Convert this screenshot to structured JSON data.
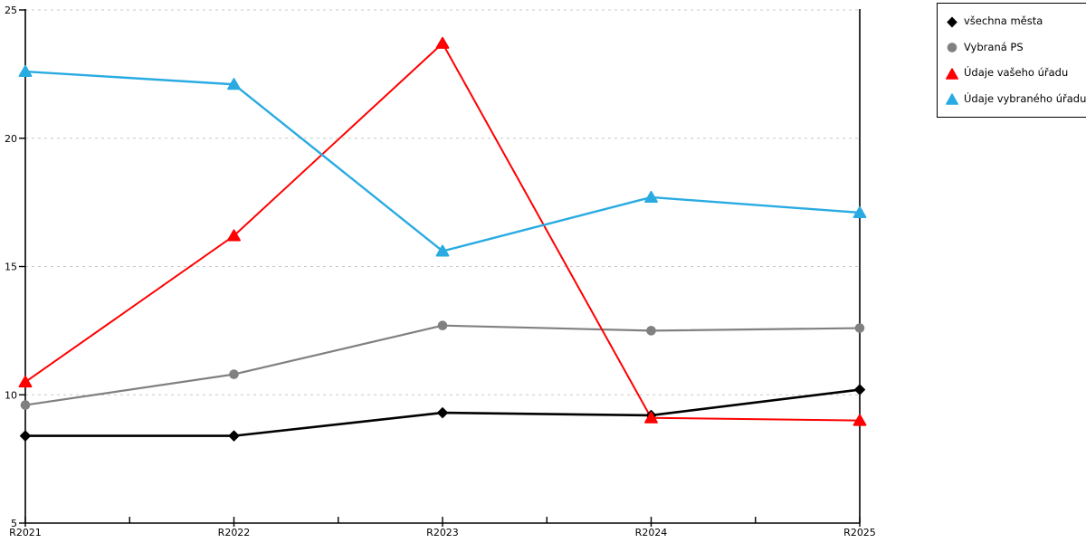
{
  "chart_data": {
    "type": "line",
    "title": "",
    "xlabel": "",
    "ylabel": "",
    "categories": [
      "R2021",
      "R2022",
      "R2023",
      "R2024",
      "R2025"
    ],
    "series": [
      {
        "name": "všechna města",
        "color": "#000000",
        "marker": "diamond",
        "line_width": 2.6,
        "values": [
          8.4,
          8.4,
          9.3,
          9.2,
          10.2
        ]
      },
      {
        "name": "Vybraná PS",
        "color": "#808080",
        "marker": "circle",
        "line_width": 2.2,
        "values": [
          9.6,
          10.8,
          12.7,
          12.5,
          12.6
        ]
      },
      {
        "name": "Údaje vašeho úřadu",
        "color": "#ff0000",
        "marker": "triangle",
        "line_width": 2.0,
        "values": [
          10.5,
          16.2,
          23.7,
          9.1,
          9.0
        ]
      },
      {
        "name": "Údaje vybraného úřadu",
        "color": "#29abe2",
        "marker": "triangle",
        "line_width": 2.4,
        "values": [
          22.6,
          22.1,
          15.6,
          17.7,
          17.1
        ]
      }
    ],
    "ylim": [
      5,
      25
    ],
    "yticks": [
      5,
      10,
      15,
      20,
      25
    ],
    "x_minor_ticks": "midpoints",
    "grid": "horizontal-dashed",
    "gridline_color": "#c8c8c8",
    "axis_color": "#000000",
    "legend_position": "outside-top-right",
    "legend_border_color": "#000000",
    "background_color": "#ffffff"
  }
}
